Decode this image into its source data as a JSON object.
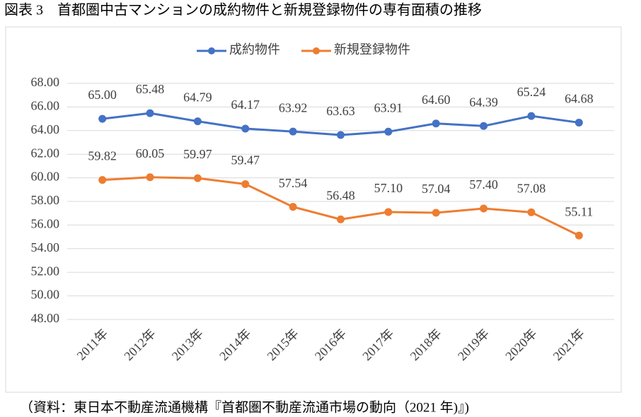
{
  "chart_data": {
    "type": "line",
    "title": "図表 3　首都圏中古マンションの成約物件と新規登録物件の専有面積の推移",
    "source": "（資料：東日本不動産流通機構『首都圏不動産流通市場の動向（2021 年)』)",
    "categories": [
      "2011年",
      "2012年",
      "2013年",
      "2014年",
      "2015年",
      "2016年",
      "2017年",
      "2018年",
      "2019年",
      "2020年",
      "2021年"
    ],
    "series": [
      {
        "name": "成約物件",
        "color": "#4472c4",
        "values": [
          65.0,
          65.48,
          64.79,
          64.17,
          63.92,
          63.63,
          63.91,
          64.6,
          64.39,
          65.24,
          64.68
        ],
        "value_labels": [
          "65.00",
          "65.48",
          "64.79",
          "64.17",
          "63.92",
          "63.63",
          "63.91",
          "64.60",
          "64.39",
          "65.24",
          "64.68"
        ]
      },
      {
        "name": "新規登録物件",
        "color": "#ed7d31",
        "values": [
          59.82,
          60.05,
          59.97,
          59.47,
          57.54,
          56.48,
          57.1,
          57.04,
          57.4,
          57.08,
          55.11
        ],
        "value_labels": [
          "59.82",
          "60.05",
          "59.97",
          "59.47",
          "57.54",
          "56.48",
          "57.10",
          "57.04",
          "57.40",
          "57.08",
          "55.11"
        ]
      }
    ],
    "ylim": [
      48,
      68
    ],
    "yticks": [
      {
        "value": 48,
        "label": "48.00"
      },
      {
        "value": 50,
        "label": "50.00"
      },
      {
        "value": 52,
        "label": "52.00"
      },
      {
        "value": 54,
        "label": "54.00"
      },
      {
        "value": 56,
        "label": "56.00"
      },
      {
        "value": 58,
        "label": "58.00"
      },
      {
        "value": 60,
        "label": "60.00"
      },
      {
        "value": 62,
        "label": "62.00"
      },
      {
        "value": 64,
        "label": "64.00"
      },
      {
        "value": 66,
        "label": "66.00"
      },
      {
        "value": 68,
        "label": "68.00"
      }
    ],
    "grid": true,
    "legend": "top"
  }
}
